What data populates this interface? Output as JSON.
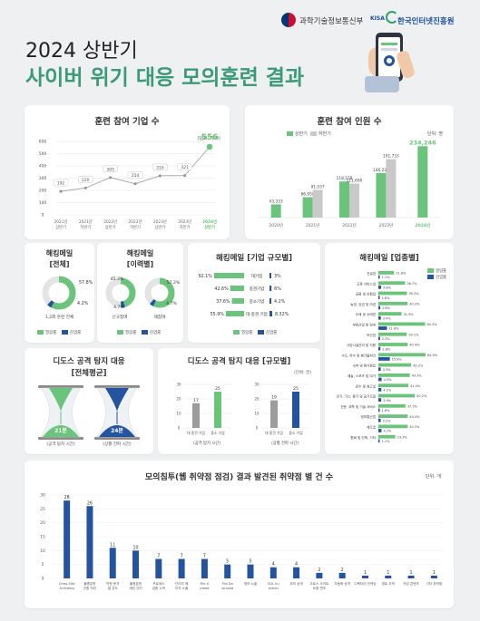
{
  "header": {
    "title_line1": "2024 상반기",
    "title_line2": "사이버 위기 대응 모의훈련 결과",
    "ministry": "과학기술정보통신부",
    "kisa_mark": "KISA",
    "agency": "한국인터넷진흥원"
  },
  "colors": {
    "green": "#6ac47b",
    "blue": "#24539f",
    "gray": "#c9c9c9",
    "title_green": "#3b9a77"
  },
  "charts": {
    "companies": {
      "title": "훈련 참여 기업 수",
      "unit": "(단위: 개사)",
      "y_ticks": [
        "600",
        "500",
        "400",
        "300",
        "200",
        "100",
        "0"
      ],
      "highlight_value": "556",
      "x_line1": [
        "2021년",
        "2021년",
        "2022년",
        "2022년",
        "2023년",
        "2023년",
        "2024년"
      ],
      "x_line2": [
        "상반기",
        "하반기",
        "상반기",
        "하반기",
        "상반기",
        "하반기",
        "상반기"
      ],
      "point_labels": [
        "192",
        "220",
        "305",
        "254",
        "319",
        "321",
        ""
      ]
    },
    "people": {
      "title": "훈련 참여 인원 수",
      "legend": [
        "상반기",
        "하반기"
      ],
      "unit": "단위: 명",
      "categories": [
        "2020년",
        "2021년",
        "2022년",
        "2023년",
        "2024년"
      ],
      "labels_h1": [
        "43,333",
        "66,958",
        "118,578",
        "146,238",
        "234,246"
      ],
      "labels_h2": [
        "",
        "91,037",
        "111,690",
        "191,733",
        ""
      ]
    },
    "email_total": {
      "title_l1": "해킹메일",
      "title_l2": "[전체]",
      "pct_open": "57.8%",
      "pct_infect": "4.2%",
      "note": "1,2회 훈련 전체",
      "legend": [
        "열람률",
        "감염률"
      ]
    },
    "email_repeat": {
      "title_l1": "해킹메일",
      "title_l2": "[이력별]",
      "left": {
        "pct_open": "45.3%",
        "pct_infect": "4.7%",
        "note": "신규참여"
      },
      "right": {
        "pct_open": "57.2%",
        "pct_infect": "4.7%",
        "note": "재참여"
      },
      "legend": [
        "열람률",
        "감염률"
      ]
    },
    "email_size": {
      "title": "해킹메일 [기업 규모별]",
      "rows": [
        {
          "label": "대기업",
          "open": "92.1%",
          "infect": "3%"
        },
        {
          "label": "중견기업",
          "open": "42.6%",
          "infect": "6%"
        },
        {
          "label": "중소기업",
          "open": "37.6%",
          "infect": "4.2%"
        },
        {
          "label": "대·중견 기업",
          "open": "55.9%",
          "infect": "8.32%"
        }
      ],
      "legend": [
        "열람률",
        "감염률"
      ]
    },
    "email_industry": {
      "title": "해킹메일 [업종별]",
      "legend": [
        "열람률",
        "감염률"
      ],
      "rows": [
        {
          "label": "건설업",
          "open": "21.6%",
          "infect": "1.1%"
        },
        {
          "label": "교육 서비스업",
          "open": "36.7%",
          "infect": "3.8%"
        },
        {
          "label": "금융 및 보험업",
          "open": "39.3%",
          "infect": "1.8%"
        },
        {
          "label": "농업, 임업 및 어업",
          "open": "40.3%",
          "infect": "2.6%"
        },
        {
          "label": "도매 및 소매업",
          "open": "31.9%",
          "infect": "3.4%"
        },
        {
          "label": "부동산업 및 임대",
          "open": "64.3%",
          "infect": "11.8%"
        },
        {
          "label": "보건업",
          "open": "39.1%",
          "infect": "2.3%"
        },
        {
          "label": "사업시설관리 및 지원",
          "open": "40.4%",
          "infect": "2.8%"
        },
        {
          "label": "수도, 하수 및 폐기물처리",
          "open": "64.9%",
          "infect": "15.8%"
        },
        {
          "label": "숙박 및 음식점업",
          "open": "45.2%",
          "infect": "3.3%"
        },
        {
          "label": "예술, 스포츠 및 여가",
          "open": "43.3%",
          "infect": "4.5%"
        },
        {
          "label": "운수 및 창고업",
          "open": "41.4%",
          "infect": "4.1%"
        },
        {
          "label": "전기, 가스, 증기 및 공기조절",
          "open": "50.2%",
          "infect": "3.9%"
        },
        {
          "label": "전문, 과학 및 기술 서비스",
          "open": "37.3%",
          "infect": "1.6%"
        },
        {
          "label": "정보통신업",
          "open": "40.5%",
          "infect": "3.2%"
        },
        {
          "label": "제조업",
          "open": "40.3%",
          "infect": "4.3%"
        },
        {
          "label": "협회 및 단체, 기타",
          "open": "23.3%",
          "infect": "1.1%"
        }
      ]
    },
    "ddos_avg": {
      "title_l1": "디도스 공격 탐지 대응",
      "title_l2": "[전체평균]",
      "left": {
        "value": "21분",
        "note": "(공격 탐지 시간)"
      },
      "right": {
        "value": "24분",
        "note": "(상황 전파 시간)"
      }
    },
    "ddos_size": {
      "title": "디도스 공격 탐지 대응 [규모별]",
      "unit": "(단위: 분)",
      "groups": [
        {
          "note": "(공격 탐지 시간)",
          "values": [
            "17",
            "25"
          ],
          "xlabels": [
            "대·중견 기업",
            "중소 기업"
          ]
        },
        {
          "note": "(상황 전파 시간)",
          "values": [
            "19",
            "25"
          ],
          "xlabels": [
            "대·중견 기업",
            "중소 기업"
          ]
        }
      ],
      "y_ticks": [
        "30",
        "20",
        "10",
        "0"
      ]
    },
    "vuln": {
      "title": "모의침투(웹 취약점 점검) 결과 발견된 취약점 별 건 수",
      "unit": "단위: 개",
      "y_ticks": [
        "30",
        "25",
        "20",
        "15",
        "10",
        "5",
        "0"
      ],
      "categories": [
        "Cross Site Scripting",
        "불충분한 인증 처리",
        "약한 문자열 강도",
        "불충분한 세션 관리",
        "프로세스 검증 누락",
        "관리자 페이지 노출",
        "File Upload",
        "File Download",
        "정보 노출",
        "SQL Injection",
        "위치 공개",
        "크로스 사이트 요청 변조",
        "자동화 공격",
        "디렉터리 인덱싱",
        "경로 추적",
        "악성 콘텐츠",
        "기타 취약점"
      ]
    }
  },
  "chart_data": [
    {
      "type": "line",
      "title": "훈련 참여 기업 수",
      "ylabel": "(단위: 개사)",
      "categories": [
        "2021년 상반기",
        "2021년 하반기",
        "2022년 상반기",
        "2022년 하반기",
        "2023년 상반기",
        "2023년 하반기",
        "2024년 상반기"
      ],
      "values": [
        192,
        220,
        305,
        254,
        319,
        321,
        556
      ],
      "ylim": [
        0,
        600
      ]
    },
    {
      "type": "bar",
      "title": "훈련 참여 인원 수",
      "ylabel": "단위: 명",
      "categories": [
        "2020년",
        "2021년",
        "2022년",
        "2023년",
        "2024년"
      ],
      "series": [
        {
          "name": "상반기",
          "values": [
            43333,
            66958,
            118578,
            146238,
            234246
          ]
        },
        {
          "name": "하반기",
          "values": [
            null,
            91037,
            111690,
            191733,
            null
          ]
        }
      ],
      "ylim": [
        0,
        250000
      ]
    },
    {
      "type": "bar",
      "title": "디도스 공격 탐지 대응 [규모별]",
      "ylabel": "(단위: 분)",
      "categories": [
        "대·중견 기업",
        "중소 기업"
      ],
      "series": [
        {
          "name": "(공격 탐지 시간)",
          "values": [
            17,
            25
          ]
        },
        {
          "name": "(상황 전파 시간)",
          "values": [
            19,
            25
          ]
        }
      ],
      "ylim": [
        0,
        30
      ]
    },
    {
      "type": "bar",
      "title": "모의침투(웹 취약점 점검) 결과 발견된 취약점 별 건 수",
      "ylabel": "단위: 개",
      "categories": [
        "Cross Site Scripting",
        "불충분한 인증 처리",
        "약한 문자열 강도",
        "불충분한 세션 관리",
        "프로세스 검증 누락",
        "관리자 페이지 노출",
        "File Upload",
        "File Download",
        "정보 노출",
        "SQL Injection",
        "위치 공개",
        "크로스 사이트 요청 변조",
        "자동화 공격",
        "디렉터리 인덱싱",
        "경로 추적",
        "악성 콘텐츠",
        "기타 취약점"
      ],
      "values": [
        28,
        26,
        11,
        10,
        7,
        7,
        7,
        5,
        5,
        4,
        4,
        2,
        2,
        1,
        1,
        1,
        1
      ],
      "ylim": [
        0,
        30
      ]
    }
  ]
}
